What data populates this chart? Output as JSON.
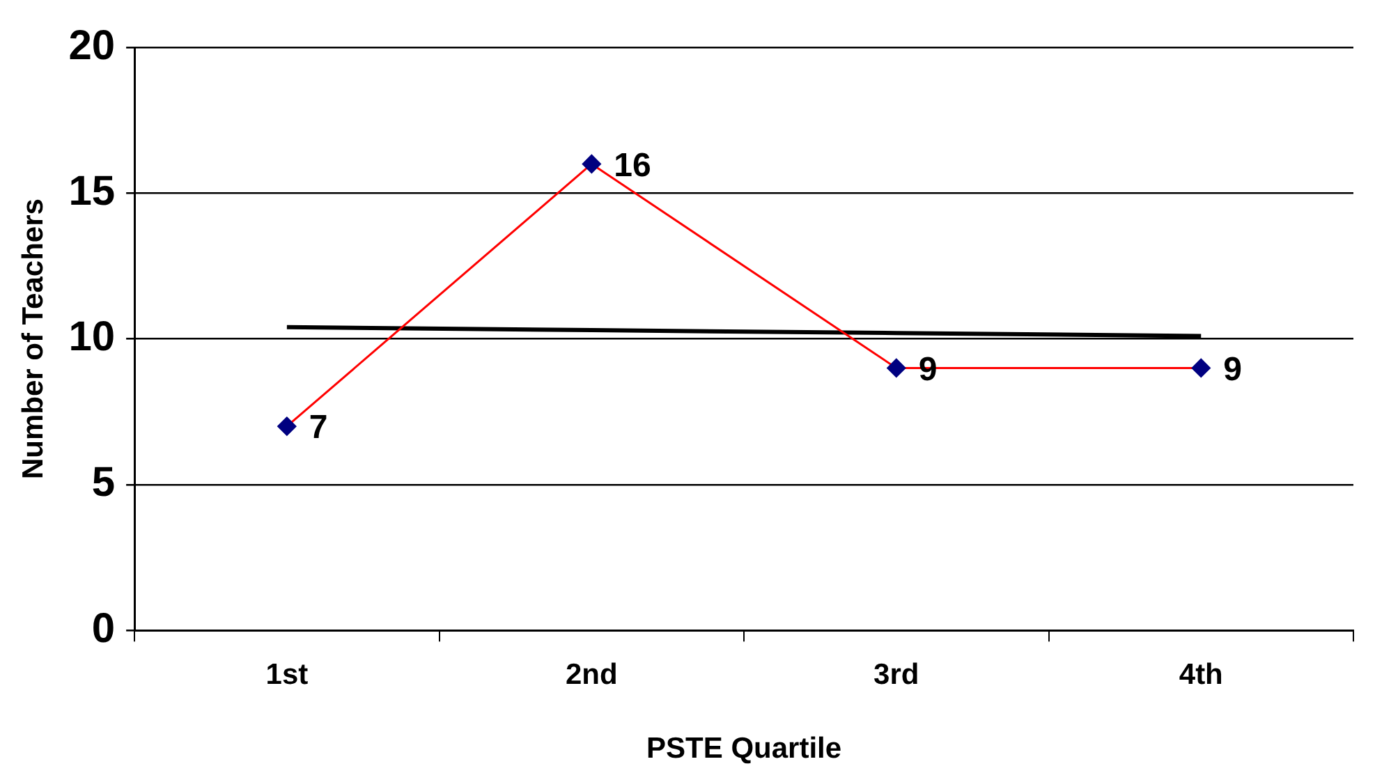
{
  "chart_data": {
    "type": "line",
    "xlabel": "PSTE Quartile",
    "ylabel": "Number of Teachers",
    "categories": [
      "1st",
      "2nd",
      "3rd",
      "4th"
    ],
    "series": [
      {
        "color": "#ff0000",
        "values": [
          7,
          16,
          9,
          9
        ],
        "marker": "diamond",
        "value_labels": [
          "7",
          "16",
          "9",
          "9"
        ]
      },
      {
        "type": "line",
        "color": "#000000",
        "values": [
          10.4,
          10.3,
          10.2,
          10.1
        ],
        "marker": "none"
      }
    ],
    "ylim": [
      0,
      20
    ],
    "yticks": [
      0,
      5,
      10,
      15,
      20
    ],
    "grid": "y",
    "legend": false
  }
}
